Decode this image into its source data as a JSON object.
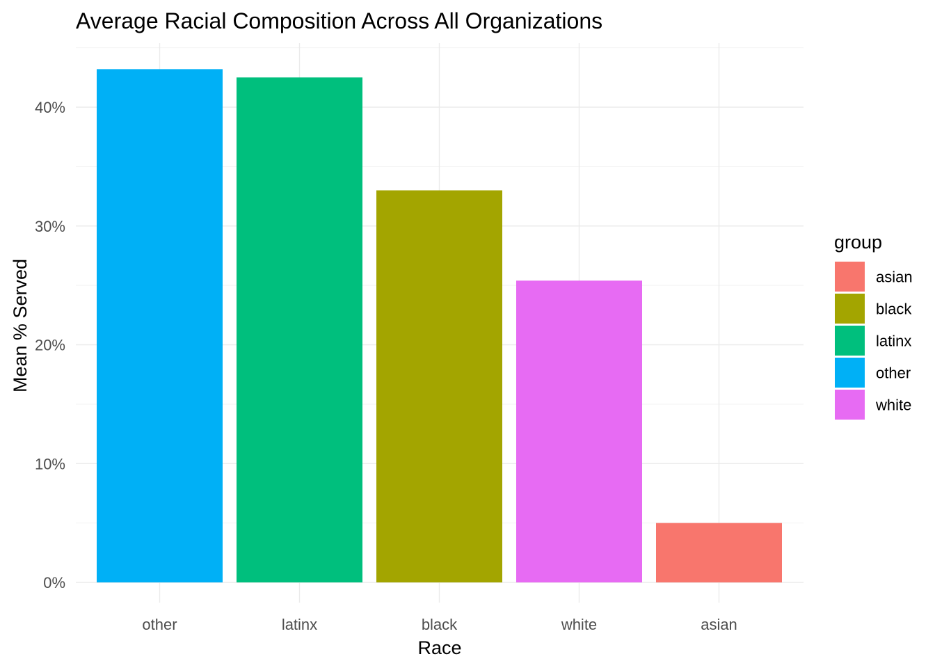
{
  "chart_data": {
    "type": "bar",
    "title": "Average Racial Composition Across All Organizations",
    "xlabel": "Race",
    "ylabel": "Mean % Served",
    "categories": [
      "other",
      "latinx",
      "black",
      "white",
      "asian"
    ],
    "values": [
      43.2,
      42.5,
      33.0,
      25.4,
      5.0
    ],
    "bar_groups": [
      "other",
      "latinx",
      "black",
      "white",
      "asian"
    ],
    "ylim": [
      0,
      45
    ],
    "yticks": [
      {
        "value": 0,
        "label": "0%"
      },
      {
        "value": 10,
        "label": "10%"
      },
      {
        "value": 20,
        "label": "20%"
      },
      {
        "value": 30,
        "label": "30%"
      },
      {
        "value": 40,
        "label": "40%"
      }
    ],
    "grid": true,
    "legend": {
      "title": "group",
      "position": "right",
      "entries": [
        {
          "label": "asian",
          "color": "#F8766D"
        },
        {
          "label": "black",
          "color": "#A3A500"
        },
        {
          "label": "latinx",
          "color": "#00BF7D"
        },
        {
          "label": "other",
          "color": "#00B0F6"
        },
        {
          "label": "white",
          "color": "#E76BF3"
        }
      ]
    }
  }
}
